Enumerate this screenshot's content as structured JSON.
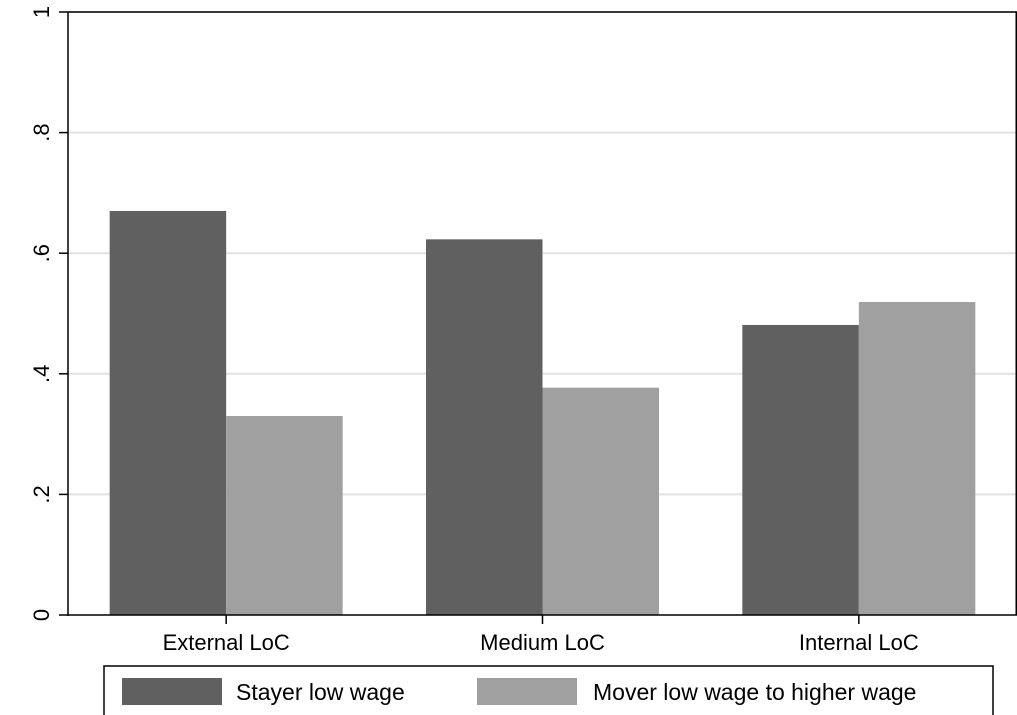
{
  "chart_data": {
    "type": "bar",
    "categories": [
      "External LoC",
      "Medium LoC",
      "Internal LoC"
    ],
    "series": [
      {
        "name": "Stayer low wage",
        "values": [
          0.67,
          0.623,
          0.481
        ],
        "color": "#606060"
      },
      {
        "name": "Mover low wage to higher wage",
        "values": [
          0.33,
          0.377,
          0.519
        ],
        "color": "#a0a0a0"
      }
    ],
    "y_ticks": [
      0,
      0.2,
      0.4,
      0.6,
      0.8,
      1
    ],
    "y_tick_labels": [
      "0",
      ".2",
      ".4",
      ".6",
      ".8",
      "1"
    ],
    "ylim": [
      0,
      1.0
    ],
    "title": "",
    "xlabel": "",
    "ylabel": "",
    "grid": true,
    "legend_position": "bottom",
    "colors": {
      "background": "#ffffff",
      "gridline": "#e2e2e2",
      "axis": "#000000"
    }
  }
}
